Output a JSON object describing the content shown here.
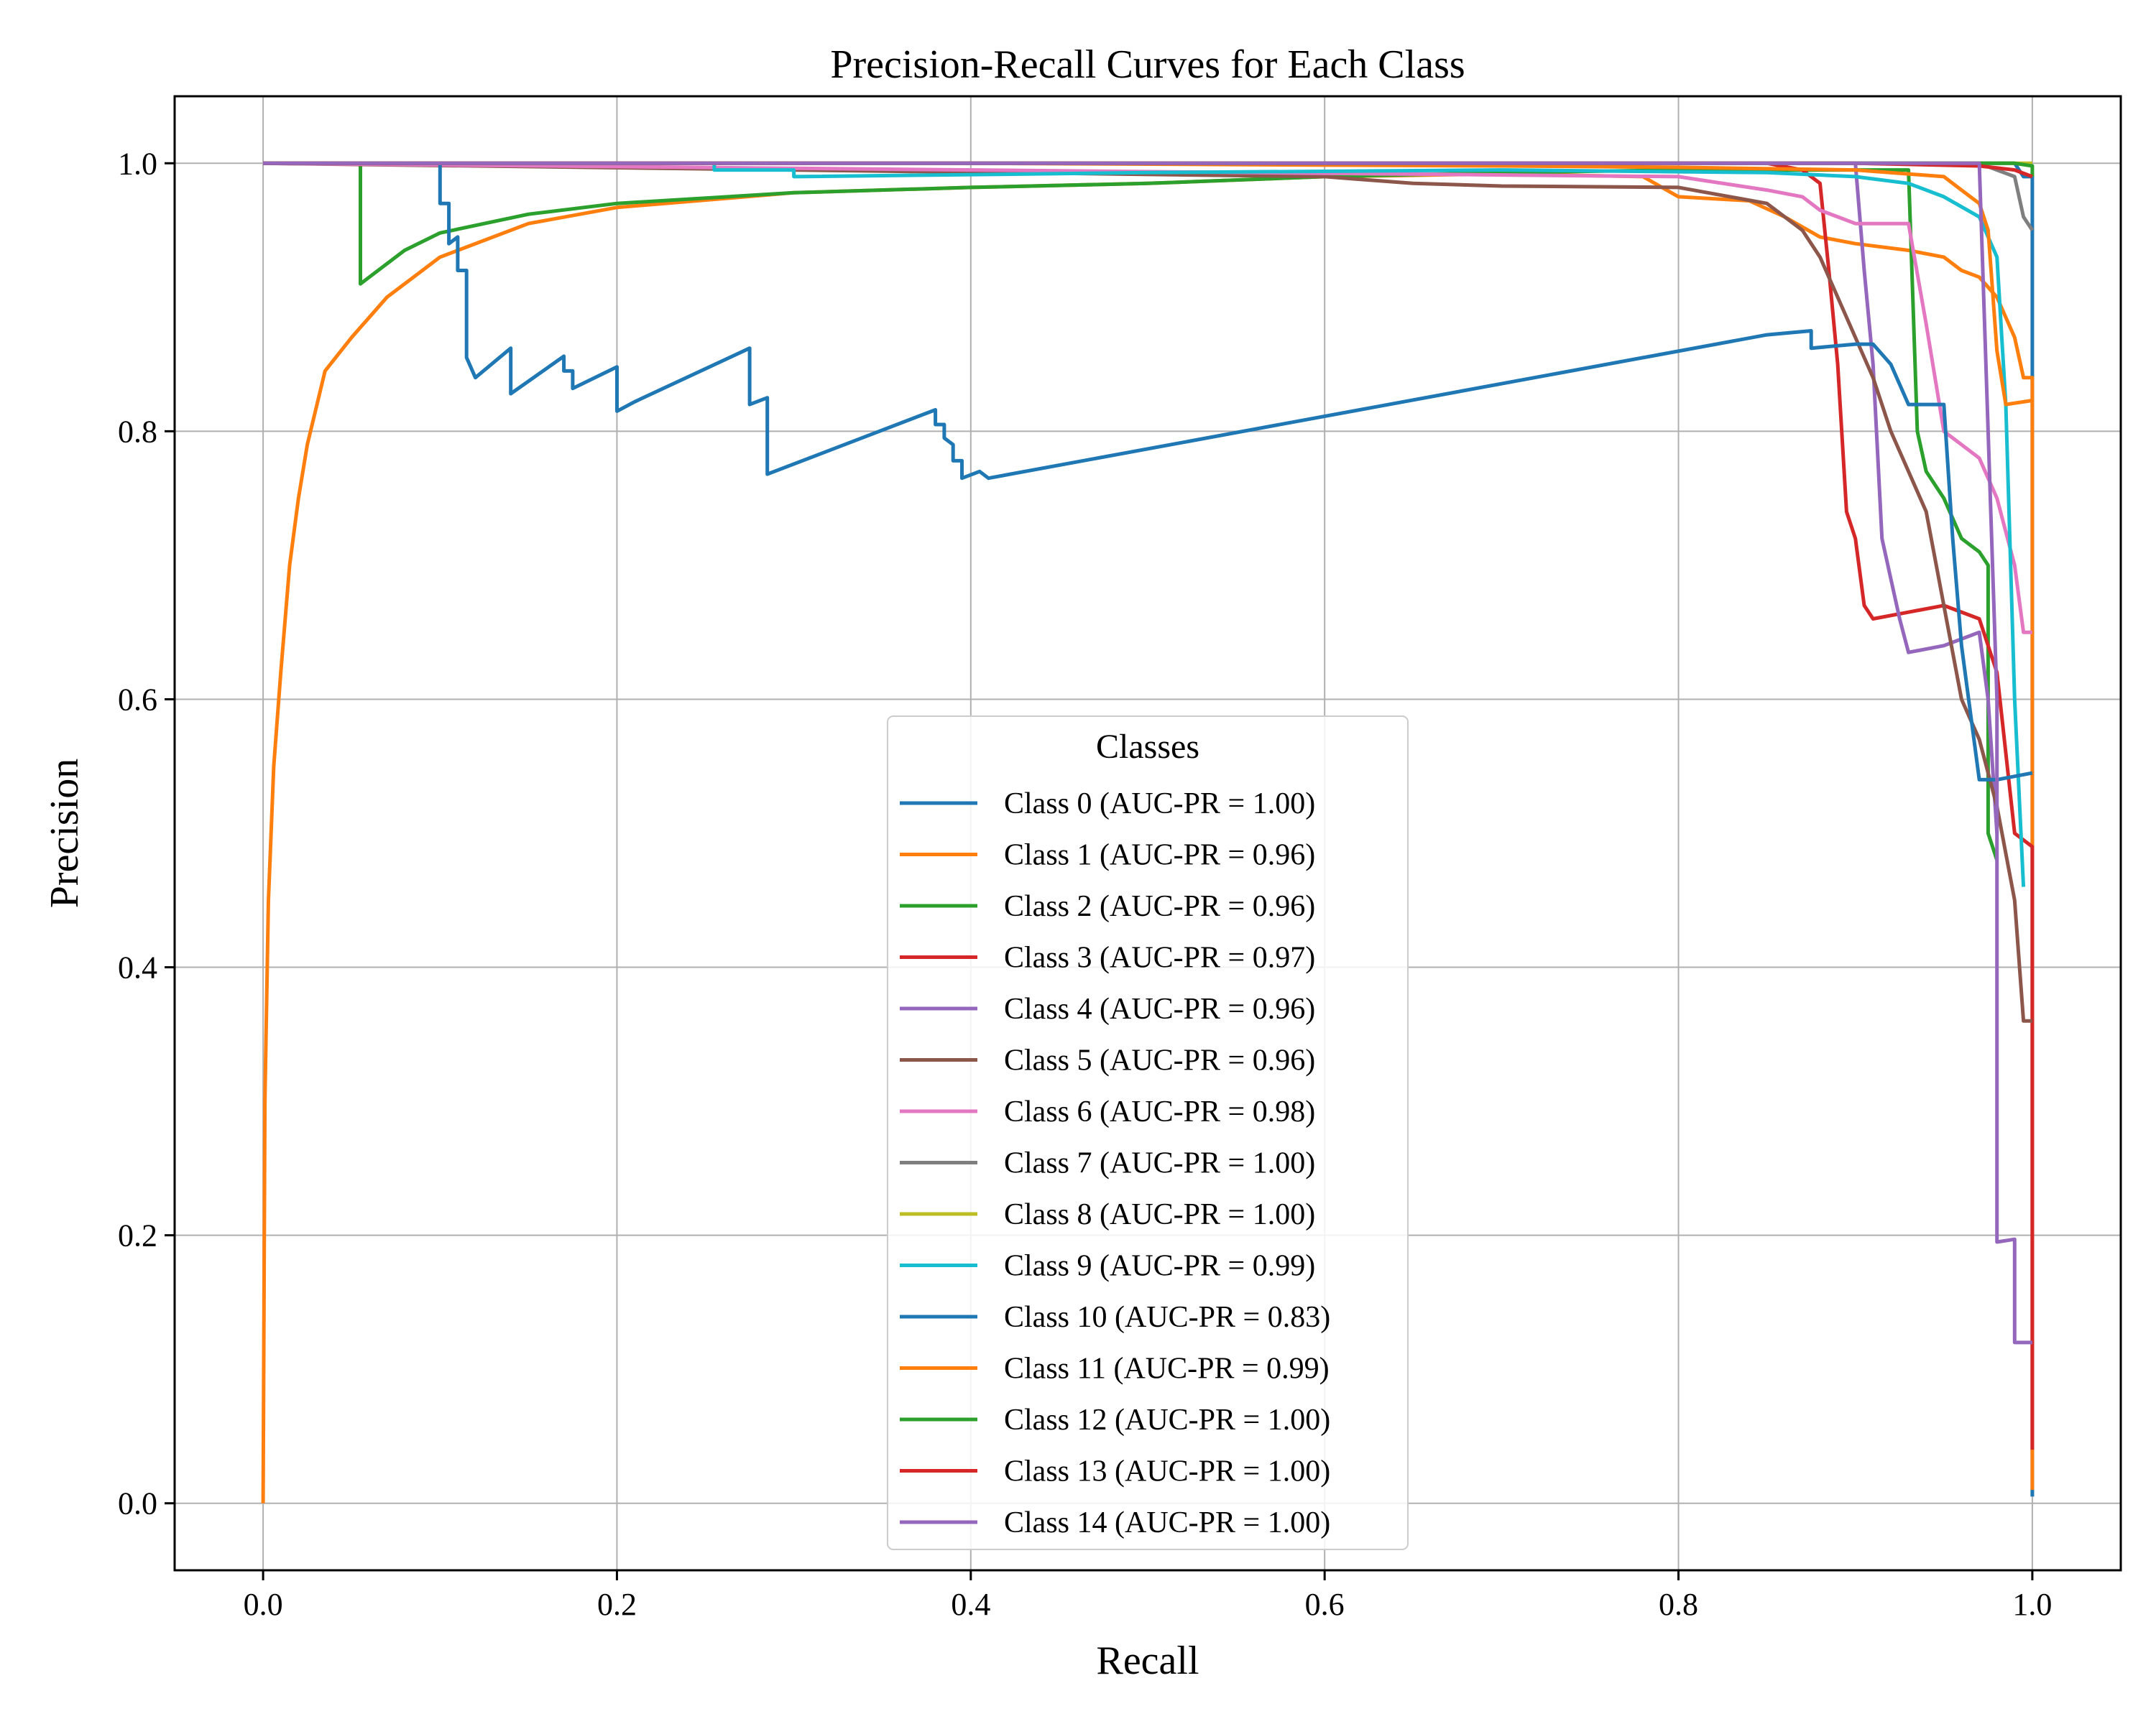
{
  "chart_data": {
    "type": "line",
    "title": "Precision-Recall Curves for Each Class",
    "xlabel": "Recall",
    "ylabel": "Precision",
    "xlim": [
      -0.05,
      1.05
    ],
    "ylim": [
      -0.05,
      1.05
    ],
    "xticks": [
      0.0,
      0.2,
      0.4,
      0.6,
      0.8,
      1.0
    ],
    "xtick_labels": [
      "0.0",
      "0.2",
      "0.4",
      "0.6",
      "0.8",
      "1.0"
    ],
    "yticks": [
      0.0,
      0.2,
      0.4,
      0.6,
      0.8,
      1.0
    ],
    "ytick_labels": [
      "0.0",
      "0.2",
      "0.4",
      "0.6",
      "0.8",
      "1.0"
    ],
    "grid": true,
    "legend": {
      "title": "Classes",
      "location": "lower-center"
    },
    "series": [
      {
        "name": "Class 0 (AUC-PR = 1.00)",
        "color": "#1f77b4",
        "points": [
          [
            0,
            1.0
          ],
          [
            0.99,
            1.0
          ],
          [
            0.995,
            0.99
          ],
          [
            1.0,
            0.99
          ],
          [
            1.0,
            0.005
          ]
        ]
      },
      {
        "name": "Class 1 (AUC-PR = 0.96)",
        "color": "#ff7f0e",
        "points": [
          [
            0,
            0.0
          ],
          [
            0.001,
            0.3
          ],
          [
            0.003,
            0.45
          ],
          [
            0.006,
            0.55
          ],
          [
            0.01,
            0.62
          ],
          [
            0.015,
            0.7
          ],
          [
            0.02,
            0.75
          ],
          [
            0.025,
            0.79
          ],
          [
            0.035,
            0.845
          ],
          [
            0.05,
            0.87
          ],
          [
            0.07,
            0.9
          ],
          [
            0.1,
            0.93
          ],
          [
            0.15,
            0.955
          ],
          [
            0.2,
            0.967
          ],
          [
            0.3,
            0.978
          ],
          [
            0.4,
            0.982
          ],
          [
            0.5,
            0.985
          ],
          [
            0.6,
            0.99
          ],
          [
            0.7,
            0.992
          ],
          [
            0.78,
            0.99
          ],
          [
            0.8,
            0.975
          ],
          [
            0.84,
            0.972
          ],
          [
            0.86,
            0.96
          ],
          [
            0.88,
            0.945
          ],
          [
            0.9,
            0.94
          ],
          [
            0.93,
            0.935
          ],
          [
            0.95,
            0.93
          ],
          [
            0.96,
            0.92
          ],
          [
            0.97,
            0.915
          ],
          [
            0.98,
            0.9
          ],
          [
            0.99,
            0.87
          ],
          [
            0.995,
            0.84
          ],
          [
            1.0,
            0.84
          ],
          [
            1.0,
            0.01
          ]
        ]
      },
      {
        "name": "Class 2 (AUC-PR = 0.96)",
        "color": "#2ca02c",
        "points": [
          [
            0,
            1.0
          ],
          [
            0.055,
            1.0
          ],
          [
            0.055,
            0.91
          ],
          [
            0.06,
            0.915
          ],
          [
            0.08,
            0.935
          ],
          [
            0.1,
            0.948
          ],
          [
            0.15,
            0.962
          ],
          [
            0.2,
            0.97
          ],
          [
            0.3,
            0.978
          ],
          [
            0.4,
            0.982
          ],
          [
            0.5,
            0.985
          ],
          [
            0.6,
            0.99
          ],
          [
            0.7,
            0.993
          ],
          [
            0.8,
            0.995
          ],
          [
            0.93,
            0.995
          ],
          [
            0.935,
            0.8
          ],
          [
            0.94,
            0.77
          ],
          [
            0.95,
            0.75
          ],
          [
            0.96,
            0.72
          ],
          [
            0.97,
            0.71
          ],
          [
            0.975,
            0.7
          ],
          [
            0.975,
            0.5
          ],
          [
            0.98,
            0.48
          ]
        ]
      },
      {
        "name": "Class 3 (AUC-PR = 0.97)",
        "color": "#d62728",
        "points": [
          [
            0,
            1.0
          ],
          [
            0.85,
            1.0
          ],
          [
            0.87,
            0.995
          ],
          [
            0.88,
            0.985
          ],
          [
            0.885,
            0.92
          ],
          [
            0.89,
            0.85
          ],
          [
            0.895,
            0.74
          ],
          [
            0.9,
            0.72
          ],
          [
            0.905,
            0.67
          ],
          [
            0.91,
            0.66
          ],
          [
            0.93,
            0.665
          ],
          [
            0.95,
            0.67
          ],
          [
            0.97,
            0.66
          ],
          [
            0.98,
            0.62
          ],
          [
            0.99,
            0.5
          ],
          [
            1.0,
            0.49
          ],
          [
            1.0,
            0.04
          ]
        ]
      },
      {
        "name": "Class 4 (AUC-PR = 0.96)",
        "color": "#9467bd",
        "points": [
          [
            0,
            1.0
          ],
          [
            0.9,
            1.0
          ],
          [
            0.905,
            0.92
          ],
          [
            0.91,
            0.85
          ],
          [
            0.915,
            0.72
          ],
          [
            0.92,
            0.69
          ],
          [
            0.925,
            0.66
          ],
          [
            0.93,
            0.635
          ],
          [
            0.95,
            0.64
          ],
          [
            0.97,
            0.65
          ],
          [
            0.975,
            0.6
          ],
          [
            0.98,
            0.5
          ]
        ]
      },
      {
        "name": "Class 5 (AUC-PR = 0.96)",
        "color": "#8c564b",
        "points": [
          [
            0,
            1.0
          ],
          [
            0.6,
            0.99
          ],
          [
            0.65,
            0.985
          ],
          [
            0.7,
            0.983
          ],
          [
            0.8,
            0.982
          ],
          [
            0.85,
            0.97
          ],
          [
            0.86,
            0.96
          ],
          [
            0.87,
            0.95
          ],
          [
            0.88,
            0.93
          ],
          [
            0.89,
            0.9
          ],
          [
            0.9,
            0.87
          ],
          [
            0.91,
            0.84
          ],
          [
            0.92,
            0.8
          ],
          [
            0.93,
            0.77
          ],
          [
            0.94,
            0.74
          ],
          [
            0.95,
            0.67
          ],
          [
            0.96,
            0.6
          ],
          [
            0.97,
            0.57
          ],
          [
            0.98,
            0.52
          ],
          [
            0.99,
            0.45
          ],
          [
            0.995,
            0.36
          ],
          [
            1.0,
            0.36
          ]
        ]
      },
      {
        "name": "Class 6 (AUC-PR = 0.98)",
        "color": "#e377c2",
        "points": [
          [
            0,
            1.0
          ],
          [
            0.8,
            0.99
          ],
          [
            0.85,
            0.98
          ],
          [
            0.87,
            0.975
          ],
          [
            0.88,
            0.965
          ],
          [
            0.89,
            0.96
          ],
          [
            0.9,
            0.955
          ],
          [
            0.93,
            0.955
          ],
          [
            0.94,
            0.88
          ],
          [
            0.95,
            0.8
          ],
          [
            0.96,
            0.79
          ],
          [
            0.97,
            0.78
          ],
          [
            0.98,
            0.75
          ],
          [
            0.99,
            0.7
          ],
          [
            0.995,
            0.65
          ],
          [
            1.0,
            0.65
          ]
        ]
      },
      {
        "name": "Class 7 (AUC-PR = 1.00)",
        "color": "#7f7f7f",
        "points": [
          [
            0,
            1.0
          ],
          [
            0.97,
            1.0
          ],
          [
            0.98,
            0.995
          ],
          [
            0.99,
            0.99
          ],
          [
            0.995,
            0.96
          ],
          [
            1.0,
            0.95
          ]
        ]
      },
      {
        "name": "Class 8 (AUC-PR = 1.00)",
        "color": "#bcbd22",
        "points": [
          [
            0,
            1.0
          ],
          [
            1.0,
            1.0
          ]
        ]
      },
      {
        "name": "Class 9 (AUC-PR = 0.99)",
        "color": "#17becf",
        "points": [
          [
            0,
            1.0
          ],
          [
            0.255,
            1.0
          ],
          [
            0.255,
            0.995
          ],
          [
            0.3,
            0.995
          ],
          [
            0.3,
            0.99
          ],
          [
            0.5,
            0.993
          ],
          [
            0.7,
            0.995
          ],
          [
            0.85,
            0.993
          ],
          [
            0.9,
            0.99
          ],
          [
            0.93,
            0.985
          ],
          [
            0.95,
            0.975
          ],
          [
            0.97,
            0.96
          ],
          [
            0.98,
            0.93
          ],
          [
            0.985,
            0.82
          ],
          [
            0.99,
            0.6
          ],
          [
            0.995,
            0.46
          ]
        ]
      },
      {
        "name": "Class 10 (AUC-PR = 0.83)",
        "color": "#1f77b4",
        "points": [
          [
            0,
            1.0
          ],
          [
            0.1,
            1.0
          ],
          [
            0.1,
            0.97
          ],
          [
            0.105,
            0.97
          ],
          [
            0.105,
            0.94
          ],
          [
            0.11,
            0.945
          ],
          [
            0.11,
            0.92
          ],
          [
            0.115,
            0.92
          ],
          [
            0.115,
            0.855
          ],
          [
            0.12,
            0.84
          ],
          [
            0.14,
            0.862
          ],
          [
            0.14,
            0.828
          ],
          [
            0.17,
            0.856
          ],
          [
            0.17,
            0.845
          ],
          [
            0.175,
            0.845
          ],
          [
            0.175,
            0.832
          ],
          [
            0.2,
            0.848
          ],
          [
            0.2,
            0.815
          ],
          [
            0.21,
            0.822
          ],
          [
            0.275,
            0.862
          ],
          [
            0.275,
            0.82
          ],
          [
            0.285,
            0.825
          ],
          [
            0.285,
            0.768
          ],
          [
            0.38,
            0.816
          ],
          [
            0.38,
            0.805
          ],
          [
            0.385,
            0.805
          ],
          [
            0.385,
            0.795
          ],
          [
            0.39,
            0.79
          ],
          [
            0.39,
            0.778
          ],
          [
            0.395,
            0.778
          ],
          [
            0.395,
            0.765
          ],
          [
            0.405,
            0.77
          ],
          [
            0.41,
            0.765
          ],
          [
            0.85,
            0.872
          ],
          [
            0.875,
            0.875
          ],
          [
            0.875,
            0.862
          ],
          [
            0.9,
            0.865
          ],
          [
            0.91,
            0.865
          ],
          [
            0.92,
            0.85
          ],
          [
            0.93,
            0.82
          ],
          [
            0.95,
            0.82
          ],
          [
            0.955,
            0.72
          ],
          [
            0.96,
            0.64
          ],
          [
            0.97,
            0.54
          ],
          [
            0.98,
            0.54
          ],
          [
            1.0,
            0.545
          ]
        ]
      },
      {
        "name": "Class 11 (AUC-PR = 0.99)",
        "color": "#ff7f0e",
        "points": [
          [
            0,
            1.0
          ],
          [
            0.4,
            1.0
          ],
          [
            0.7,
            0.998
          ],
          [
            0.8,
            0.997
          ],
          [
            0.9,
            0.995
          ],
          [
            0.95,
            0.99
          ],
          [
            0.96,
            0.98
          ],
          [
            0.97,
            0.97
          ],
          [
            0.975,
            0.95
          ],
          [
            0.98,
            0.86
          ],
          [
            0.985,
            0.82
          ],
          [
            1.0,
            0.823
          ]
        ]
      },
      {
        "name": "Class 12 (AUC-PR = 1.00)",
        "color": "#2ca02c",
        "points": [
          [
            0,
            1.0
          ],
          [
            0.99,
            1.0
          ],
          [
            1.0,
            0.998
          ],
          [
            1.0,
            0.99
          ]
        ]
      },
      {
        "name": "Class 13 (AUC-PR = 1.00)",
        "color": "#d62728",
        "points": [
          [
            0,
            1.0
          ],
          [
            0.9,
            1.0
          ],
          [
            0.97,
            0.998
          ],
          [
            0.99,
            0.995
          ],
          [
            1.0,
            0.99
          ]
        ]
      },
      {
        "name": "Class 14 (AUC-PR = 1.00)",
        "color": "#9467bd",
        "points": [
          [
            0,
            1.0
          ],
          [
            0.97,
            1.0
          ],
          [
            0.98,
            0.6
          ],
          [
            0.98,
            0.195
          ],
          [
            0.99,
            0.197
          ],
          [
            0.99,
            0.12
          ],
          [
            1.0,
            0.12
          ]
        ]
      }
    ]
  }
}
